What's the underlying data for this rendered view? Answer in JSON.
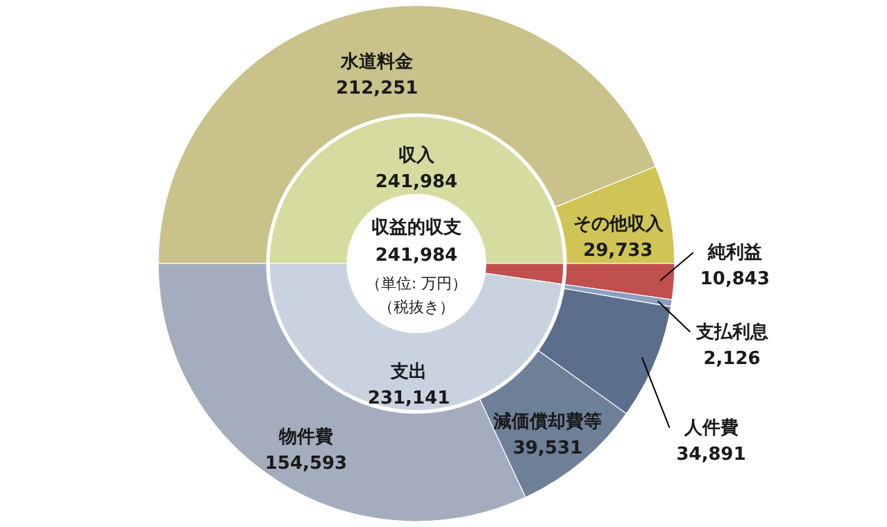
{
  "chart_data": [
    {
      "type": "donut",
      "categories": [
        "収入",
        null,
        "支出"
      ],
      "values": [
        241984,
        10843,
        231141
      ],
      "colors": [
        "#d6dca0",
        "#c0504d",
        "#c9d3e0"
      ],
      "value_labels": [
        "241,984",
        null,
        "231,141"
      ],
      "annotations": [
        "収益的収支",
        "241,984",
        "（単位: 万円）",
        "（税抜き）"
      ]
    },
    {
      "type": "donut",
      "categories": [
        "水道料金",
        "その他収入",
        "純利益",
        "支払利息",
        "人件費",
        "減価償却費等",
        "物件費"
      ],
      "values": [
        212251,
        29733,
        10843,
        2126,
        34891,
        39531,
        154593
      ],
      "colors": [
        "#c9c28a",
        "#cfc455",
        "#c0504d",
        "#8aa0c0",
        "#5b6e8c",
        "#6e7f98",
        "#a3adbd"
      ],
      "value_labels": [
        "212,251",
        "29,733",
        "10,843",
        "2,126",
        "34,891",
        "39,531",
        "154,593"
      ]
    }
  ]
}
